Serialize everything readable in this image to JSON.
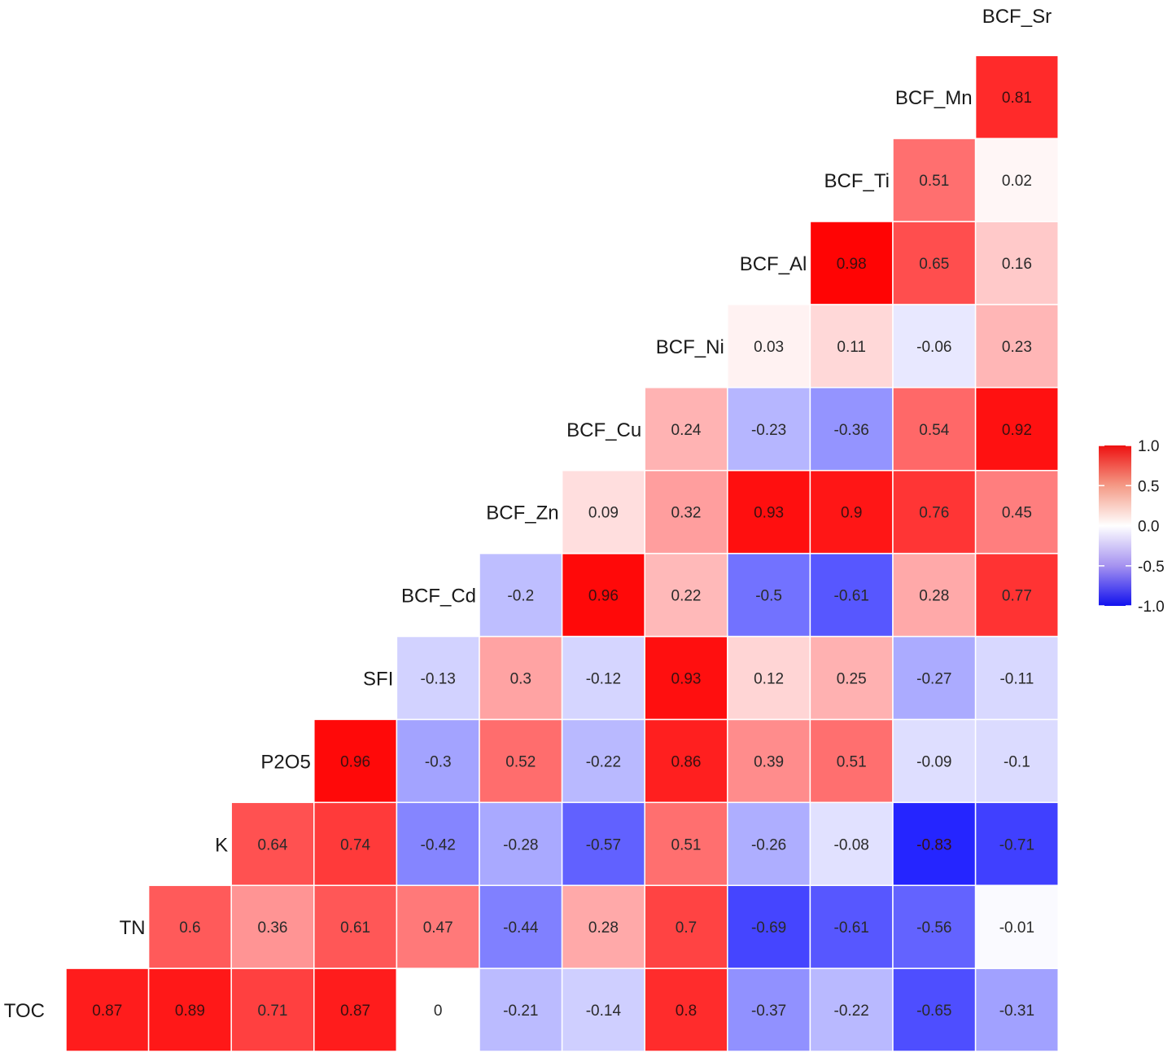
{
  "chart_data": {
    "type": "heatmap",
    "variables": [
      "TOC",
      "TN",
      "K",
      "P2O5",
      "SFI",
      "BCF_Cd",
      "BCF_Zn",
      "BCF_Cu",
      "BCF_Ni",
      "BCF_Al",
      "BCF_Ti",
      "BCF_Mn",
      "BCF_Sr"
    ],
    "matrix": [
      [
        "TOC",
        "TN",
        0.87
      ],
      [
        "TOC",
        "K",
        0.89
      ],
      [
        "TOC",
        "P2O5",
        0.71
      ],
      [
        "TOC",
        "SFI",
        0.87
      ],
      [
        "TOC",
        "BCF_Cd",
        0
      ],
      [
        "TOC",
        "BCF_Zn",
        -0.21
      ],
      [
        "TOC",
        "BCF_Cu",
        -0.14
      ],
      [
        "TOC",
        "BCF_Ni",
        0.8
      ],
      [
        "TOC",
        "BCF_Al",
        -0.37
      ],
      [
        "TOC",
        "BCF_Ti",
        -0.22
      ],
      [
        "TOC",
        "BCF_Mn",
        -0.65
      ],
      [
        "TOC",
        "BCF_Sr",
        -0.31
      ],
      [
        "TN",
        "K",
        0.6
      ],
      [
        "TN",
        "P2O5",
        0.36
      ],
      [
        "TN",
        "SFI",
        0.61
      ],
      [
        "TN",
        "BCF_Cd",
        0.47
      ],
      [
        "TN",
        "BCF_Zn",
        -0.44
      ],
      [
        "TN",
        "BCF_Cu",
        0.28
      ],
      [
        "TN",
        "BCF_Ni",
        0.7
      ],
      [
        "TN",
        "BCF_Al",
        -0.69
      ],
      [
        "TN",
        "BCF_Ti",
        -0.61
      ],
      [
        "TN",
        "BCF_Mn",
        -0.56
      ],
      [
        "TN",
        "BCF_Sr",
        -0.01
      ],
      [
        "K",
        "P2O5",
        0.64
      ],
      [
        "K",
        "SFI",
        0.74
      ],
      [
        "K",
        "BCF_Cd",
        -0.42
      ],
      [
        "K",
        "BCF_Zn",
        -0.28
      ],
      [
        "K",
        "BCF_Cu",
        -0.57
      ],
      [
        "K",
        "BCF_Ni",
        0.51
      ],
      [
        "K",
        "BCF_Al",
        -0.26
      ],
      [
        "K",
        "BCF_Ti",
        -0.08
      ],
      [
        "K",
        "BCF_Mn",
        -0.83
      ],
      [
        "K",
        "BCF_Sr",
        -0.71
      ],
      [
        "P2O5",
        "SFI",
        0.96
      ],
      [
        "P2O5",
        "BCF_Cd",
        -0.3
      ],
      [
        "P2O5",
        "BCF_Zn",
        0.52
      ],
      [
        "P2O5",
        "BCF_Cu",
        -0.22
      ],
      [
        "P2O5",
        "BCF_Ni",
        0.86
      ],
      [
        "P2O5",
        "BCF_Al",
        0.39
      ],
      [
        "P2O5",
        "BCF_Ti",
        0.51
      ],
      [
        "P2O5",
        "BCF_Mn",
        -0.09
      ],
      [
        "P2O5",
        "BCF_Sr",
        -0.1
      ],
      [
        "SFI",
        "BCF_Cd",
        -0.13
      ],
      [
        "SFI",
        "BCF_Zn",
        0.3
      ],
      [
        "SFI",
        "BCF_Cu",
        -0.12
      ],
      [
        "SFI",
        "BCF_Ni",
        0.93
      ],
      [
        "SFI",
        "BCF_Al",
        0.12
      ],
      [
        "SFI",
        "BCF_Ti",
        0.25
      ],
      [
        "SFI",
        "BCF_Mn",
        -0.27
      ],
      [
        "SFI",
        "BCF_Sr",
        -0.11
      ],
      [
        "BCF_Cd",
        "BCF_Zn",
        -0.2
      ],
      [
        "BCF_Cd",
        "BCF_Cu",
        0.96
      ],
      [
        "BCF_Cd",
        "BCF_Ni",
        0.22
      ],
      [
        "BCF_Cd",
        "BCF_Al",
        -0.5
      ],
      [
        "BCF_Cd",
        "BCF_Ti",
        -0.61
      ],
      [
        "BCF_Cd",
        "BCF_Mn",
        0.28
      ],
      [
        "BCF_Cd",
        "BCF_Sr",
        0.77
      ],
      [
        "BCF_Zn",
        "BCF_Cu",
        0.09
      ],
      [
        "BCF_Zn",
        "BCF_Ni",
        0.32
      ],
      [
        "BCF_Zn",
        "BCF_Al",
        0.93
      ],
      [
        "BCF_Zn",
        "BCF_Ti",
        0.9
      ],
      [
        "BCF_Zn",
        "BCF_Mn",
        0.76
      ],
      [
        "BCF_Zn",
        "BCF_Sr",
        0.45
      ],
      [
        "BCF_Cu",
        "BCF_Ni",
        0.24
      ],
      [
        "BCF_Cu",
        "BCF_Al",
        -0.23
      ],
      [
        "BCF_Cu",
        "BCF_Ti",
        -0.36
      ],
      [
        "BCF_Cu",
        "BCF_Mn",
        0.54
      ],
      [
        "BCF_Cu",
        "BCF_Sr",
        0.92
      ],
      [
        "BCF_Ni",
        "BCF_Al",
        0.03
      ],
      [
        "BCF_Ni",
        "BCF_Ti",
        0.11
      ],
      [
        "BCF_Ni",
        "BCF_Mn",
        -0.06
      ],
      [
        "BCF_Ni",
        "BCF_Sr",
        0.23
      ],
      [
        "BCF_Al",
        "BCF_Ti",
        0.98
      ],
      [
        "BCF_Al",
        "BCF_Mn",
        0.65
      ],
      [
        "BCF_Al",
        "BCF_Sr",
        0.16
      ],
      [
        "BCF_Ti",
        "BCF_Mn",
        0.51
      ],
      [
        "BCF_Ti",
        "BCF_Sr",
        0.02
      ],
      [
        "BCF_Mn",
        "BCF_Sr",
        0.81
      ]
    ],
    "scale": {
      "min": -1.0,
      "max": 1.0,
      "ticks": [
        "1.0",
        "0.5",
        "0.0",
        "-0.5",
        "-1.0"
      ],
      "colors": {
        "low": "#0000ff",
        "mid": "#ffffff",
        "high": "#ff0000"
      }
    },
    "legend_position": "right",
    "grid": false,
    "title": "",
    "xlabel": "",
    "ylabel": ""
  }
}
